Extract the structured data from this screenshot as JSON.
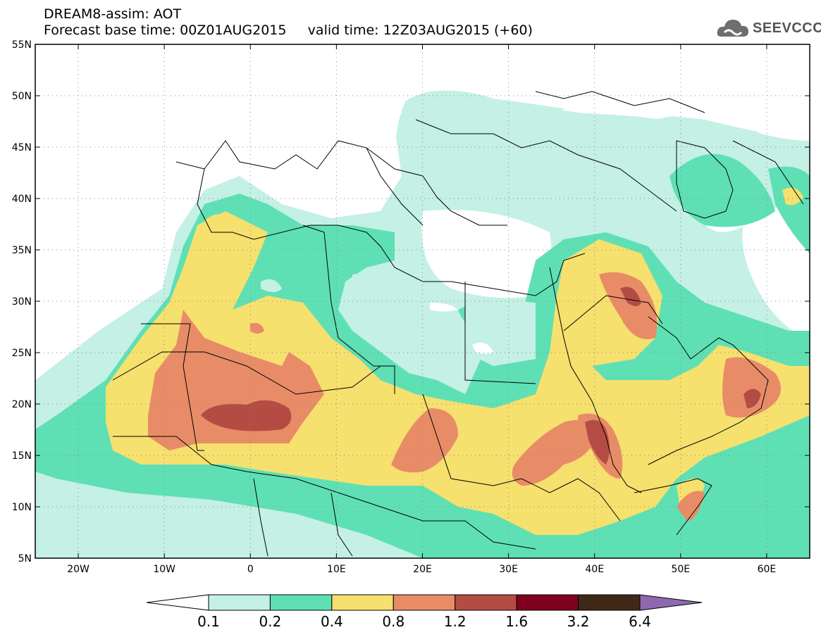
{
  "header": {
    "title_line1": "DREAM8-assim: AOT",
    "title_line2": "Forecast base time: 00Z01AUG2015     valid time: 12Z03AUG2015 (+60)",
    "logo_text": "SEEVCCC"
  },
  "map": {
    "lon_labels": [
      "20W",
      "10W",
      "0",
      "10E",
      "20E",
      "30E",
      "40E",
      "50E",
      "60E"
    ],
    "lat_labels": [
      "55N",
      "50N",
      "45N",
      "40N",
      "35N",
      "30N",
      "25N",
      "20N",
      "15N",
      "10N",
      "5N"
    ]
  },
  "colorbar": {
    "labels": [
      "0.1",
      "0.2",
      "0.4",
      "0.8",
      "1.2",
      "1.6",
      "3.2",
      "6.4"
    ],
    "colors": [
      "#ffffff",
      "#c4f0e6",
      "#5fe0b4",
      "#f6e06e",
      "#e88c68",
      "#b44c44",
      "#800020",
      "#402818",
      "#9068b0"
    ]
  },
  "colors": {
    "c1": "#c4f0e6",
    "c2": "#5fe0b4",
    "c3": "#f6e06e",
    "c4": "#e88c68",
    "c5": "#b44c44",
    "c6": "#800020",
    "c7": "#402818",
    "c8": "#9068b0"
  }
}
